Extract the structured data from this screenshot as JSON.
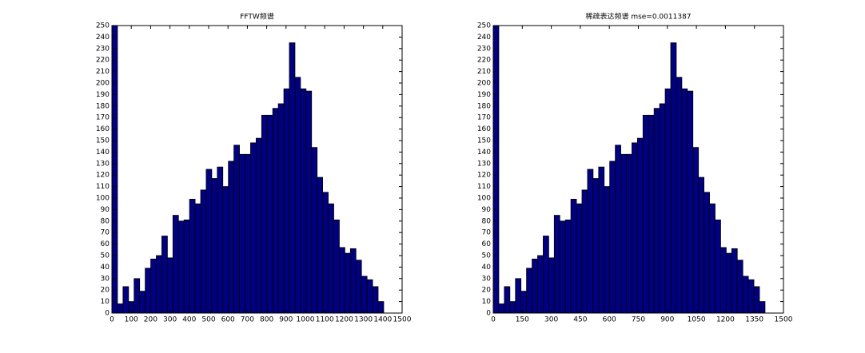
{
  "chart_data": [
    {
      "type": "histogram",
      "title": "FFTW频谱",
      "color": "#000080",
      "bins": [
        0,
        28.7,
        57.3,
        86,
        114.7,
        143.3,
        172,
        200.7,
        229.3,
        258,
        286.7,
        315.3,
        344,
        372.7,
        401.3,
        430,
        458.7,
        487.3,
        516,
        544.7,
        573.3,
        602,
        630.7,
        659.3,
        688,
        716.7,
        745.3,
        774,
        802.7,
        831.3,
        860,
        888.7,
        917.3,
        946,
        974.7,
        1003.3,
        1032,
        1060.7,
        1089.3,
        1118,
        1146.7,
        1175.3,
        1204,
        1232.7,
        1261.3,
        1290,
        1318.7,
        1347.3,
        1376,
        1404.7
      ],
      "values": [
        250,
        8,
        23,
        10,
        30,
        19,
        39,
        47,
        50,
        67,
        48,
        85,
        80,
        81,
        99,
        95,
        107,
        125,
        117,
        127,
        110,
        132,
        146,
        138,
        138,
        148,
        152,
        172,
        172,
        178,
        182,
        195,
        235,
        205,
        195,
        193,
        144,
        118,
        105,
        95,
        81,
        57,
        52,
        56,
        46,
        32,
        29,
        23,
        10
      ],
      "xlim": [
        0,
        1500
      ],
      "xticks": [
        0,
        100,
        200,
        300,
        400,
        500,
        600,
        700,
        800,
        900,
        1000,
        1100,
        1200,
        1300,
        1400,
        1500
      ],
      "ylim": [
        0,
        250
      ],
      "yticks": [
        0,
        10,
        20,
        30,
        40,
        50,
        60,
        70,
        80,
        90,
        100,
        110,
        120,
        130,
        140,
        150,
        160,
        170,
        180,
        190,
        200,
        210,
        220,
        230,
        240,
        250
      ]
    },
    {
      "type": "histogram",
      "title": "稀疏表达频谱 mse=0.0011387",
      "color": "#000080",
      "bins": [
        0,
        28.7,
        57.3,
        86,
        114.7,
        143.3,
        172,
        200.7,
        229.3,
        258,
        286.7,
        315.3,
        344,
        372.7,
        401.3,
        430,
        458.7,
        487.3,
        516,
        544.7,
        573.3,
        602,
        630.7,
        659.3,
        688,
        716.7,
        745.3,
        774,
        802.7,
        831.3,
        860,
        888.7,
        917.3,
        946,
        974.7,
        1003.3,
        1032,
        1060.7,
        1089.3,
        1118,
        1146.7,
        1175.3,
        1204,
        1232.7,
        1261.3,
        1290,
        1318.7,
        1347.3,
        1376,
        1404.7
      ],
      "values": [
        250,
        8,
        23,
        10,
        30,
        19,
        39,
        47,
        50,
        67,
        48,
        85,
        80,
        81,
        99,
        95,
        107,
        125,
        117,
        127,
        110,
        132,
        146,
        138,
        138,
        148,
        152,
        172,
        172,
        178,
        182,
        195,
        235,
        205,
        195,
        193,
        144,
        118,
        105,
        95,
        81,
        57,
        52,
        56,
        46,
        32,
        29,
        23,
        10
      ],
      "xlim": [
        0,
        1500
      ],
      "xticks": [
        0,
        150,
        300,
        450,
        600,
        750,
        900,
        1050,
        1200,
        1350,
        1500
      ],
      "ylim": [
        0,
        250
      ],
      "yticks": [
        0,
        10,
        20,
        30,
        40,
        50,
        60,
        70,
        80,
        90,
        100,
        110,
        120,
        130,
        140,
        150,
        160,
        170,
        180,
        190,
        200,
        210,
        220,
        230,
        240,
        250
      ]
    }
  ]
}
